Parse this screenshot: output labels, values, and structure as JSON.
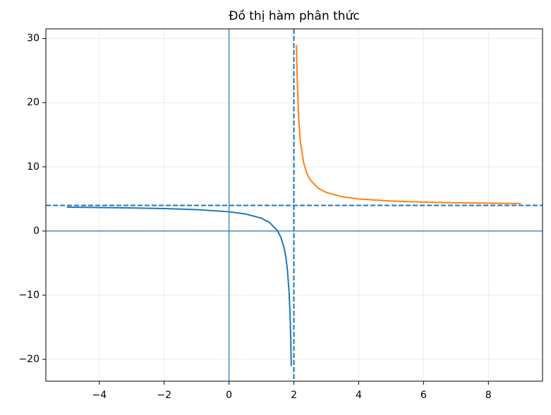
{
  "chart_data": {
    "type": "line",
    "title": "Đồ thị hàm phân thức",
    "series": [
      {
        "color": "#1f77b4",
        "x": [
          -5,
          -4,
          -3,
          -2,
          -1,
          0,
          0.5,
          1,
          1.25,
          1.5,
          1.6,
          1.7,
          1.75,
          1.8,
          1.85,
          1.88,
          1.9,
          1.92
        ],
        "values": [
          3.714,
          3.667,
          3.6,
          3.5,
          3.333,
          3,
          2.667,
          2,
          1.333,
          0,
          -1,
          -2.667,
          -4,
          -6,
          -9.333,
          -12.667,
          -16,
          -21
        ]
      },
      {
        "color": "#ff7f0e",
        "x": [
          2.08,
          2.1,
          2.15,
          2.2,
          2.3,
          2.4,
          2.5,
          2.75,
          3,
          3.5,
          4,
          5,
          6,
          7,
          8,
          9
        ],
        "values": [
          29,
          24,
          17.333,
          14,
          10.667,
          9,
          8,
          6.667,
          6,
          5.333,
          5,
          4.667,
          4.5,
          4.4,
          4.333,
          4.286
        ]
      }
    ],
    "reference_lines": [
      {
        "axis": "x",
        "value": 0,
        "style": "solid",
        "color": "#1f77b4"
      },
      {
        "axis": "y",
        "value": 0,
        "style": "solid",
        "color": "#1f77b4"
      },
      {
        "axis": "x",
        "value": 2,
        "style": "dashed",
        "color": "#1f77b4"
      },
      {
        "axis": "y",
        "value": 4,
        "style": "dashed",
        "color": "#1f77b4"
      }
    ],
    "xlim": [
      -5.65,
      9.67
    ],
    "ylim": [
      -23.4,
      31.5
    ],
    "xticks": [
      {
        "value": -4,
        "label": "−4"
      },
      {
        "value": -2,
        "label": "−2"
      },
      0,
      2,
      4,
      6,
      8
    ],
    "yticks": [
      {
        "value": -20,
        "label": "−20"
      },
      {
        "value": -10,
        "label": "−10"
      },
      0,
      10,
      20,
      30
    ],
    "grid": true
  }
}
